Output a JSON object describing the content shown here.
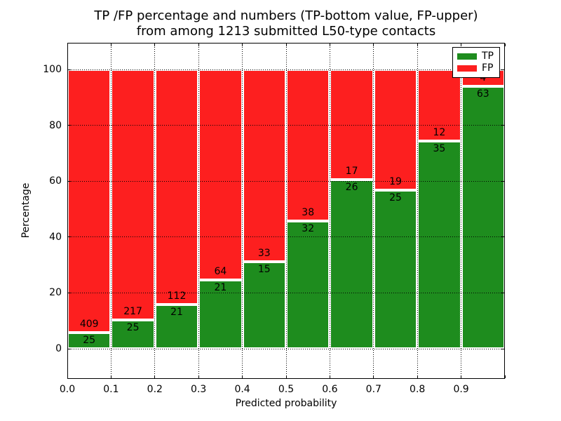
{
  "title": {
    "line1": "TP /FP percentage and numbers (TP-bottom value, FP-upper)",
    "line2": "from among 1213 submitted L50-type contacts"
  },
  "chart_data": {
    "type": "bar",
    "stacked": true,
    "normalized_to_percent": true,
    "title": "TP /FP percentage and numbers (TP-bottom value, FP-upper) from among 1213 submitted L50-type contacts",
    "total_submitted": 1213,
    "xlabel": "Predicted probability",
    "ylabel": "Percentage",
    "xlim": [
      0.0,
      1.0
    ],
    "ylim": [
      -10.8,
      109.5
    ],
    "bin_width": 0.1,
    "bin_starts": [
      0.0,
      0.1,
      0.2,
      0.3,
      0.4,
      0.5,
      0.6,
      0.7,
      0.8,
      0.9
    ],
    "xtick_labels": [
      "0.0",
      "0.1",
      "0.2",
      "0.3",
      "0.4",
      "0.5",
      "0.6",
      "0.7",
      "0.8",
      "0.9"
    ],
    "ytick_values": [
      0,
      20,
      40,
      60,
      80,
      100
    ],
    "grid": "dotted, drawn above bars",
    "colors": {
      "tp": "#1e8c1e",
      "fp": "#fd1f1f",
      "bar_edge": "#ffffff",
      "text": "#000000"
    },
    "legend": {
      "position": "upper right",
      "entries": [
        {
          "label": "TP",
          "color": "#1e8c1e"
        },
        {
          "label": "FP",
          "color": "#fd1f1f"
        }
      ]
    },
    "series": [
      {
        "name": "TP",
        "position": "bottom",
        "counts": [
          25,
          25,
          21,
          21,
          15,
          32,
          26,
          25,
          35,
          63
        ]
      },
      {
        "name": "FP",
        "position": "upper",
        "counts": [
          409,
          217,
          112,
          64,
          33,
          38,
          17,
          19,
          12,
          4
        ]
      }
    ],
    "tp_percent_heights": [
      5.76,
      10.33,
      15.79,
      24.71,
      31.25,
      45.71,
      60.47,
      56.82,
      74.47,
      94.03
    ],
    "last_fp_label_note": "partially hidden behind legend"
  }
}
